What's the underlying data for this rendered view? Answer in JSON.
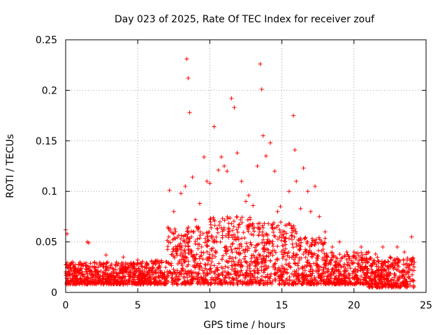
{
  "chart_data": {
    "type": "scatter",
    "title": "Day 023 of 2025, Rate Of TEC Index for receiver zouf",
    "xlabel": "GPS time / hours",
    "ylabel": "ROTI / TECUs",
    "xlim": [
      0,
      25
    ],
    "ylim": [
      0,
      0.25
    ],
    "xticks": [
      "0",
      "5",
      "10",
      "15",
      "20",
      "25"
    ],
    "yticks": [
      "0",
      "0.05",
      "0.1",
      "0.15",
      "0.2",
      "0.25"
    ],
    "grid": true,
    "marker": "plus",
    "color": "#ff0000",
    "series": [
      {
        "x": [
          0.0,
          0.1,
          0.2,
          0.3,
          0.5,
          1.0,
          1.5,
          1.6,
          2.0,
          2.8,
          3.8,
          4.0,
          5.0,
          6.0,
          7.0,
          7.2,
          7.5,
          8.0,
          8.3,
          8.4,
          8.5,
          8.6,
          8.8,
          9.0,
          9.3,
          9.6,
          9.8,
          10.0,
          10.3,
          10.6,
          10.8,
          11.0,
          11.2,
          11.5,
          11.7,
          11.9,
          12.2,
          12.5,
          12.7,
          13.0,
          13.3,
          13.5,
          13.6,
          13.7,
          13.9,
          14.2,
          14.5,
          14.7,
          14.9,
          15.2,
          15.5,
          15.8,
          15.9,
          16.0,
          16.3,
          16.5,
          16.8,
          17.0,
          17.3,
          17.6,
          18.0,
          18.5,
          19.0,
          19.5,
          20.0,
          20.5,
          21.0,
          21.5,
          22.0,
          22.5,
          23.0,
          23.5,
          24.0
        ],
        "y": [
          0.062,
          0.058,
          0.02,
          0.018,
          0.03,
          0.03,
          0.05,
          0.049,
          0.03,
          0.037,
          0.022,
          0.035,
          0.032,
          0.025,
          0.03,
          0.101,
          0.08,
          0.098,
          0.105,
          0.231,
          0.212,
          0.178,
          0.114,
          0.072,
          0.088,
          0.134,
          0.11,
          0.108,
          0.164,
          0.121,
          0.134,
          0.125,
          0.12,
          0.192,
          0.183,
          0.138,
          0.11,
          0.09,
          0.096,
          0.086,
          0.125,
          0.226,
          0.201,
          0.155,
          0.135,
          0.148,
          0.12,
          0.08,
          0.085,
          0.06,
          0.1,
          0.175,
          0.141,
          0.11,
          0.083,
          0.123,
          0.1,
          0.08,
          0.105,
          0.075,
          0.06,
          0.045,
          0.05,
          0.04,
          0.04,
          0.045,
          0.04,
          0.038,
          0.045,
          0.035,
          0.045,
          0.04,
          0.055
        ]
      }
    ],
    "band": {
      "segments": [
        {
          "x0": 0.0,
          "x1": 2.0,
          "ymin": 0.008,
          "ymax": 0.03
        },
        {
          "x0": 2.0,
          "x1": 5.0,
          "ymin": 0.008,
          "ymax": 0.03
        },
        {
          "x0": 5.0,
          "x1": 7.0,
          "ymin": 0.008,
          "ymax": 0.032
        },
        {
          "x0": 7.0,
          "x1": 10.0,
          "ymin": 0.008,
          "ymax": 0.065
        },
        {
          "x0": 10.0,
          "x1": 13.0,
          "ymin": 0.008,
          "ymax": 0.075
        },
        {
          "x0": 13.0,
          "x1": 16.0,
          "ymin": 0.008,
          "ymax": 0.07
        },
        {
          "x0": 16.0,
          "x1": 18.0,
          "ymin": 0.008,
          "ymax": 0.055
        },
        {
          "x0": 18.0,
          "x1": 21.0,
          "ymin": 0.008,
          "ymax": 0.04
        },
        {
          "x0": 21.0,
          "x1": 24.2,
          "ymin": 0.005,
          "ymax": 0.035
        }
      ]
    }
  }
}
